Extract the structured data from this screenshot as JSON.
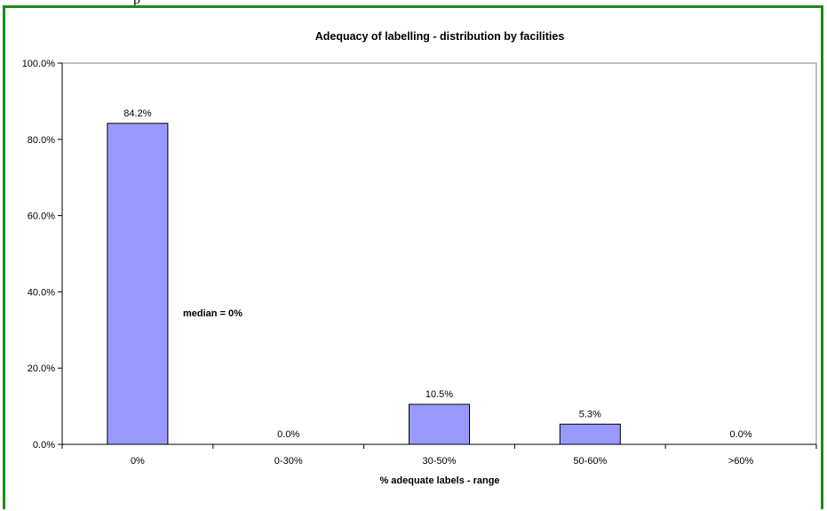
{
  "caption_fragment": "p",
  "chart_data": {
    "type": "bar",
    "title": "Adequacy of labelling - distribution by facilities",
    "xlabel": "% adequate labels - range",
    "ylabel": "",
    "categories": [
      "0%",
      "0-30%",
      "30-50%",
      "50-60%",
      ">60%"
    ],
    "values": [
      84.2,
      0.0,
      10.5,
      5.3,
      0.0
    ],
    "value_labels": [
      "84.2%",
      "0.0%",
      "10.5%",
      "5.3%",
      "0.0%"
    ],
    "ylim": [
      0,
      100
    ],
    "y_ticks": [
      "0.0%",
      "20.0%",
      "40.0%",
      "60.0%",
      "80.0%",
      "100.0%"
    ],
    "grid": false,
    "legend": "none",
    "annotation": "median = 0%",
    "bar_color": "#9999ff",
    "frame_color": "#1a8a1a"
  }
}
